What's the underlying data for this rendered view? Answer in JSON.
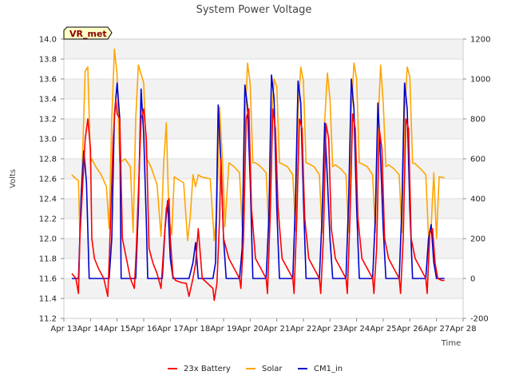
{
  "chart_data": {
    "type": "line",
    "title": "System Power Voltage",
    "xlabel": "Time",
    "ylabel": "Volts",
    "ylim": [
      11.2,
      14.0
    ],
    "y2lim": [
      -200,
      1200
    ],
    "y_ticks": [
      "11.2",
      "11.4",
      "11.6",
      "11.8",
      "12.0",
      "12.2",
      "12.4",
      "12.6",
      "12.8",
      "13.0",
      "13.2",
      "13.4",
      "13.6",
      "13.8",
      "14.0"
    ],
    "y2_ticks": [
      "-200",
      "0",
      "200",
      "400",
      "600",
      "800",
      "1000",
      "1200"
    ],
    "x_ticks": [
      "Apr 13",
      "Apr 14",
      "Apr 15",
      "Apr 16",
      "Apr 17",
      "Apr 18",
      "Apr 19",
      "Apr 20",
      "Apr 21",
      "Apr 22",
      "Apr 23",
      "Apr 24",
      "Apr 25",
      "Apr 26",
      "Apr 27",
      "Apr 28"
    ],
    "xlim": [
      13,
      28
    ],
    "annotation": "VR_met",
    "series": [
      {
        "name": "23x Battery",
        "axis": "left",
        "color": "#ff0000",
        "x": [
          13.3,
          13.45,
          13.55,
          13.6,
          13.7,
          13.8,
          13.9,
          14.0,
          14.05,
          14.15,
          14.3,
          14.5,
          14.65,
          14.72,
          14.85,
          14.95,
          15.0,
          15.1,
          15.2,
          15.35,
          15.5,
          15.65,
          15.72,
          15.9,
          16.0,
          16.1,
          16.2,
          16.35,
          16.5,
          16.65,
          16.7,
          16.85,
          16.95,
          17.0,
          17.1,
          17.2,
          17.4,
          17.6,
          17.7,
          17.85,
          17.95,
          18.05,
          18.2,
          18.4,
          18.6,
          18.65,
          18.75,
          18.85,
          18.9,
          19.0,
          19.2,
          19.4,
          19.6,
          19.65,
          19.75,
          19.85,
          19.95,
          20.05,
          20.2,
          20.4,
          20.6,
          20.65,
          20.75,
          20.85,
          20.95,
          21.05,
          21.2,
          21.4,
          21.6,
          21.65,
          21.75,
          21.85,
          21.95,
          22.05,
          22.2,
          22.4,
          22.6,
          22.65,
          22.75,
          22.85,
          22.95,
          23.05,
          23.2,
          23.4,
          23.6,
          23.65,
          23.75,
          23.85,
          23.95,
          24.05,
          24.2,
          24.4,
          24.6,
          24.65,
          24.75,
          24.85,
          24.95,
          25.05,
          25.2,
          25.4,
          25.6,
          25.65,
          25.75,
          25.85,
          25.95,
          26.05,
          26.2,
          26.4,
          26.6,
          26.65,
          26.75,
          26.85,
          26.95,
          27.05,
          27.2,
          27.3
        ],
        "y": [
          11.65,
          11.6,
          11.45,
          12.0,
          12.5,
          13.0,
          13.2,
          12.9,
          12.0,
          11.8,
          11.7,
          11.6,
          11.42,
          11.9,
          13.0,
          13.4,
          13.25,
          13.2,
          12.0,
          11.8,
          11.6,
          11.5,
          11.9,
          13.2,
          13.3,
          13.0,
          11.9,
          11.75,
          11.65,
          11.5,
          11.7,
          12.3,
          12.4,
          12.0,
          11.62,
          11.58,
          11.56,
          11.55,
          11.42,
          11.6,
          11.75,
          12.1,
          11.6,
          11.55,
          11.5,
          11.38,
          11.55,
          12.2,
          12.8,
          12.0,
          11.8,
          11.7,
          11.6,
          11.5,
          12.0,
          13.2,
          13.3,
          12.3,
          11.8,
          11.7,
          11.6,
          11.45,
          12.2,
          13.3,
          13.1,
          12.3,
          11.8,
          11.7,
          11.6,
          11.45,
          12.2,
          13.2,
          13.1,
          12.2,
          11.8,
          11.7,
          11.6,
          11.45,
          12.0,
          13.15,
          13.0,
          12.1,
          11.8,
          11.7,
          11.6,
          11.45,
          12.2,
          13.25,
          13.1,
          12.2,
          11.8,
          11.7,
          11.6,
          11.45,
          11.9,
          13.1,
          12.9,
          12.0,
          11.8,
          11.7,
          11.6,
          11.45,
          12.0,
          13.2,
          13.1,
          12.0,
          11.8,
          11.7,
          11.6,
          11.45,
          12.05,
          12.1,
          11.75,
          11.6,
          11.58,
          11.58
        ]
      },
      {
        "name": "Solar",
        "axis": "right",
        "color": "#ffa500",
        "x": [
          13.3,
          13.45,
          13.55,
          13.6,
          13.7,
          13.8,
          13.9,
          14.0,
          14.05,
          14.2,
          14.4,
          14.6,
          14.7,
          14.8,
          14.9,
          15.0,
          15.1,
          15.3,
          15.5,
          15.6,
          15.7,
          15.8,
          16.0,
          16.1,
          16.2,
          16.3,
          16.5,
          16.65,
          16.75,
          16.85,
          16.95,
          17.05,
          17.15,
          17.25,
          17.5,
          17.65,
          17.75,
          17.85,
          17.95,
          18.05,
          18.15,
          18.3,
          18.5,
          18.65,
          18.75,
          18.85,
          18.95,
          19.05,
          19.2,
          19.4,
          19.6,
          19.7,
          19.8,
          19.9,
          20.0,
          20.1,
          20.2,
          20.4,
          20.6,
          20.7,
          20.8,
          20.9,
          21.0,
          21.1,
          21.2,
          21.4,
          21.6,
          21.7,
          21.8,
          21.9,
          22.0,
          22.1,
          22.2,
          22.4,
          22.6,
          22.7,
          22.8,
          22.9,
          23.0,
          23.1,
          23.2,
          23.4,
          23.6,
          23.7,
          23.8,
          23.9,
          24.0,
          24.1,
          24.2,
          24.4,
          24.6,
          24.7,
          24.8,
          24.9,
          25.0,
          25.1,
          25.2,
          25.4,
          25.6,
          25.7,
          25.8,
          25.9,
          26.0,
          26.1,
          26.2,
          26.4,
          26.6,
          26.7,
          26.8,
          26.9,
          27.0,
          27.1,
          27.3
        ],
        "y": [
          520,
          500,
          490,
          220,
          600,
          1040,
          1060,
          580,
          600,
          560,
          520,
          460,
          250,
          800,
          1150,
          1020,
          580,
          600,
          560,
          230,
          800,
          1070,
          980,
          600,
          580,
          550,
          470,
          210,
          580,
          780,
          300,
          220,
          510,
          500,
          480,
          190,
          310,
          520,
          460,
          520,
          510,
          505,
          500,
          190,
          350,
          860,
          620,
          260,
          580,
          560,
          530,
          260,
          760,
          1080,
          980,
          580,
          580,
          560,
          530,
          230,
          800,
          1000,
          960,
          580,
          575,
          560,
          520,
          240,
          830,
          1060,
          990,
          580,
          575,
          560,
          520,
          230,
          790,
          1030,
          900,
          560,
          570,
          550,
          520,
          230,
          840,
          1080,
          1000,
          580,
          575,
          560,
          520,
          230,
          750,
          1070,
          880,
          560,
          570,
          550,
          520,
          230,
          820,
          1060,
          1010,
          580,
          575,
          550,
          520,
          210,
          260,
          530,
          200,
          510,
          505
        ]
      },
      {
        "name": "CM1_in",
        "axis": "right",
        "color": "#0000cc",
        "x": [
          13.3,
          13.5,
          13.55,
          13.65,
          13.75,
          13.85,
          13.95,
          14.05,
          14.1,
          14.3,
          14.5,
          14.7,
          14.8,
          14.9,
          15.0,
          15.1,
          15.15,
          15.3,
          15.5,
          15.7,
          15.8,
          15.9,
          16.0,
          16.1,
          16.15,
          16.3,
          16.5,
          16.7,
          16.8,
          16.9,
          17.0,
          17.1,
          17.3,
          17.6,
          17.7,
          17.85,
          17.95,
          18.05,
          18.2,
          18.5,
          18.6,
          18.7,
          18.8,
          18.9,
          19.0,
          19.1,
          19.3,
          19.6,
          19.7,
          19.8,
          19.9,
          20.0,
          20.1,
          20.2,
          20.4,
          20.6,
          20.7,
          20.8,
          20.9,
          21.0,
          21.1,
          21.2,
          21.4,
          21.6,
          21.7,
          21.8,
          21.9,
          22.0,
          22.1,
          22.2,
          22.4,
          22.6,
          22.7,
          22.8,
          22.9,
          23.0,
          23.1,
          23.2,
          23.4,
          23.6,
          23.7,
          23.8,
          23.9,
          24.0,
          24.1,
          24.2,
          24.4,
          24.6,
          24.7,
          24.8,
          24.9,
          25.0,
          25.1,
          25.2,
          25.4,
          25.6,
          25.7,
          25.8,
          25.9,
          26.0,
          26.1,
          26.2,
          26.4,
          26.6,
          26.7,
          26.8,
          26.9,
          27.0,
          27.1,
          27.3
        ],
        "y": [
          0,
          0,
          0,
          420,
          640,
          480,
          0,
          0,
          0,
          0,
          0,
          0,
          200,
          820,
          980,
          800,
          0,
          0,
          0,
          0,
          350,
          950,
          720,
          280,
          0,
          0,
          0,
          0,
          250,
          390,
          100,
          0,
          0,
          0,
          0,
          80,
          180,
          0,
          0,
          0,
          0,
          80,
          870,
          580,
          200,
          0,
          0,
          0,
          150,
          970,
          860,
          500,
          0,
          0,
          0,
          0,
          300,
          1020,
          900,
          350,
          0,
          0,
          0,
          0,
          380,
          990,
          880,
          400,
          0,
          0,
          0,
          0,
          300,
          780,
          500,
          200,
          0,
          0,
          0,
          0,
          400,
          1000,
          850,
          350,
          0,
          0,
          0,
          0,
          300,
          880,
          600,
          250,
          0,
          0,
          0,
          0,
          350,
          980,
          850,
          350,
          0,
          0,
          0,
          0,
          200,
          270,
          80,
          0,
          0,
          0
        ]
      }
    ]
  }
}
